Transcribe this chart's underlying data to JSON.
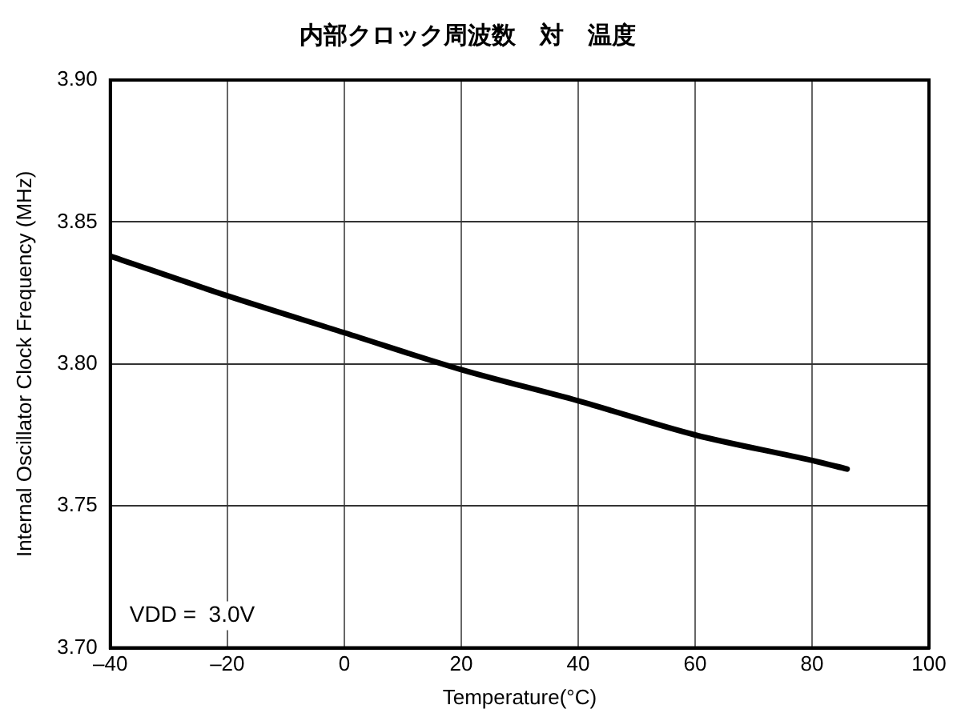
{
  "chart_data": {
    "type": "line",
    "title": "内部クロック周波数　対　温度",
    "xlabel": "Temperature(°C)",
    "ylabel": "Internal Oscillator Clock Frequency (MHz)",
    "x": [
      -40,
      -20,
      0,
      20,
      40,
      60,
      80,
      86
    ],
    "series": [
      {
        "color": "#000000",
        "values": [
          3.838,
          3.824,
          3.811,
          3.798,
          3.787,
          3.775,
          3.766,
          3.763
        ]
      }
    ],
    "xlim": [
      -40,
      100
    ],
    "xticks": [
      {
        "value": -40,
        "label": "–40"
      },
      {
        "value": -20,
        "label": "–20"
      },
      0,
      20,
      40,
      60,
      80,
      100
    ],
    "ylim": [
      3.7,
      3.9
    ],
    "yticks": [
      {
        "value": 3.7,
        "label": "3.70"
      },
      {
        "value": 3.75,
        "label": "3.75"
      },
      {
        "value": 3.8,
        "label": "3.80"
      },
      {
        "value": 3.85,
        "label": "3.85"
      },
      {
        "value": 3.9,
        "label": "3.90"
      }
    ],
    "grid": true,
    "legend": false,
    "marker": "none",
    "line_style": "solid",
    "annotations": [
      "VDD =  3.0V"
    ]
  }
}
